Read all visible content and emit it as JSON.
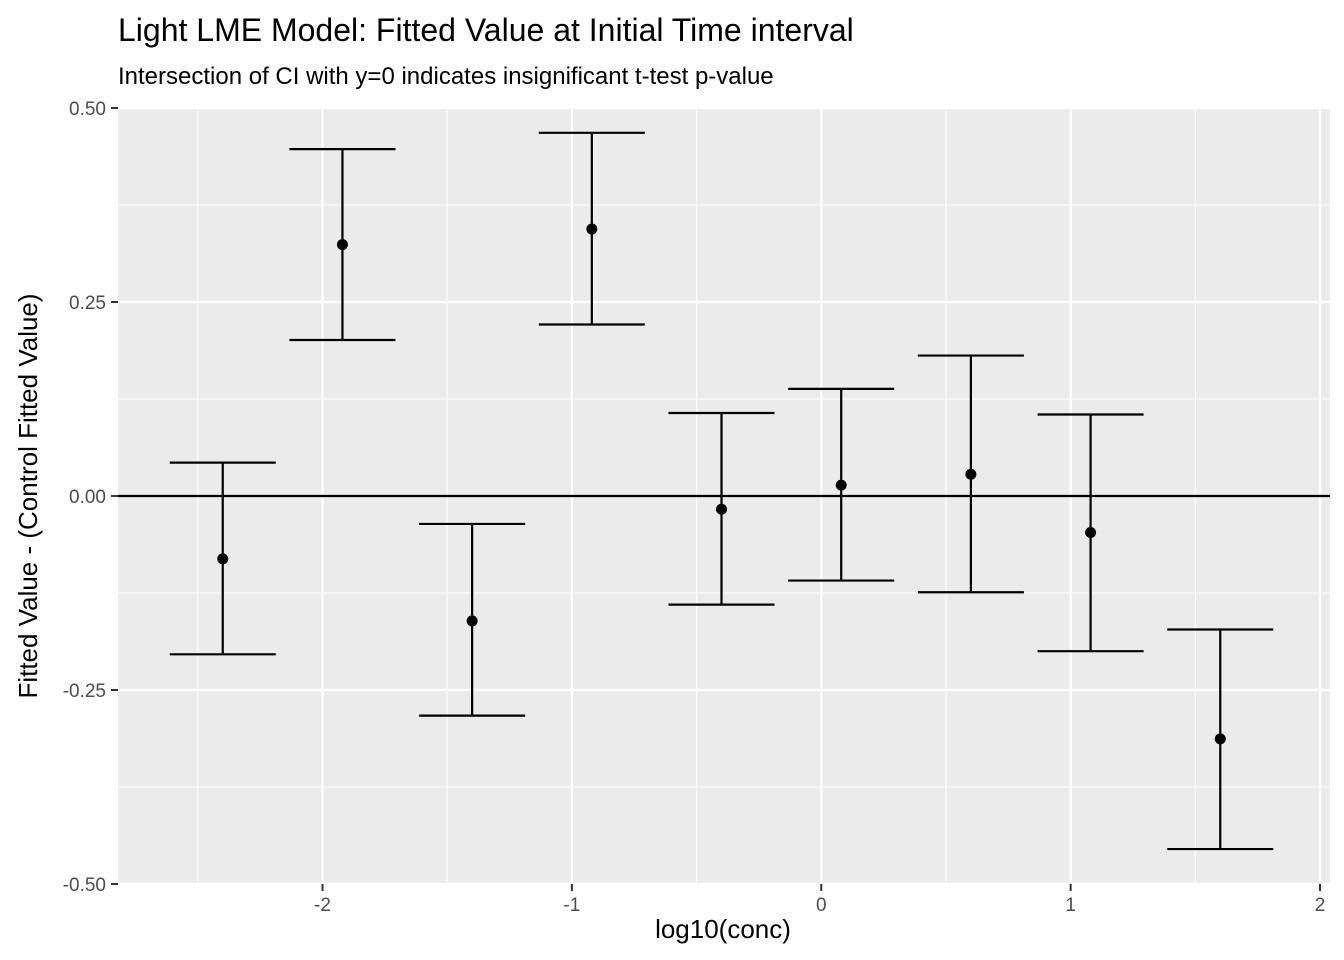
{
  "chart_data": {
    "type": "scatter",
    "title": "Light LME Model: Fitted Value at Initial Time interval",
    "subtitle": "Intersection of CI with y=0 indicates insignificant t-test p-value",
    "xlabel": "log10(conc)",
    "ylabel": "Fitted Value - (Control Fitted Value)",
    "xlim": [
      -2.82,
      2.04
    ],
    "ylim": [
      -0.5,
      0.5
    ],
    "x_ticks": [
      -2,
      -1,
      0,
      1,
      2
    ],
    "x_tick_labels": [
      "-2",
      "-1",
      "0",
      "1",
      "2"
    ],
    "y_ticks": [
      0.5,
      0.25,
      0.0,
      -0.25,
      -0.5
    ],
    "y_tick_labels": [
      "0.50",
      "0.25",
      "0.00",
      "-0.25",
      "-0.50"
    ],
    "grid": true,
    "reference_line_y": 0,
    "panel_color": "#ebebeb",
    "point_color": "#000000",
    "points": [
      {
        "x": -2.4,
        "y": -0.081,
        "lower": -0.204,
        "upper": 0.043
      },
      {
        "x": -1.92,
        "y": 0.324,
        "lower": 0.201,
        "upper": 0.447
      },
      {
        "x": -1.4,
        "y": -0.161,
        "lower": -0.283,
        "upper": -0.036
      },
      {
        "x": -0.92,
        "y": 0.344,
        "lower": 0.221,
        "upper": 0.468
      },
      {
        "x": -0.4,
        "y": -0.017,
        "lower": -0.14,
        "upper": 0.107
      },
      {
        "x": 0.08,
        "y": 0.014,
        "lower": -0.109,
        "upper": 0.138
      },
      {
        "x": 0.6,
        "y": 0.028,
        "lower": -0.124,
        "upper": 0.181
      },
      {
        "x": 1.08,
        "y": -0.047,
        "lower": -0.2,
        "upper": 0.105
      },
      {
        "x": 1.6,
        "y": -0.313,
        "lower": -0.455,
        "upper": -0.172
      }
    ]
  }
}
